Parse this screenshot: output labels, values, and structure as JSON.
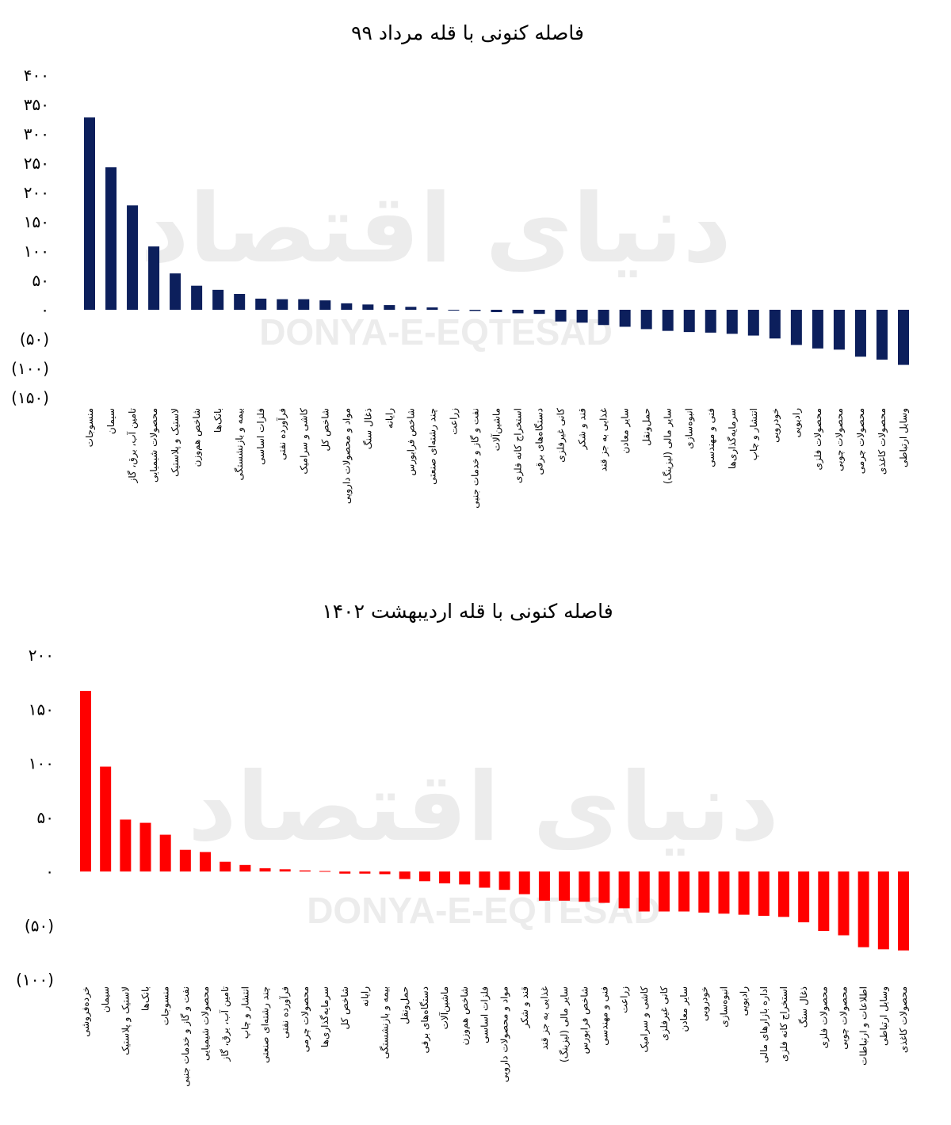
{
  "watermark": {
    "persian": "دنیای اقتصاد",
    "latin": "DONYA-E-EQTESAD"
  },
  "colors": {
    "chart1_bar": "#0c1f5c",
    "chart2_bar": "#ff0000",
    "watermark": "#ececec"
  },
  "chart_data": [
    {
      "type": "bar",
      "title": "فاصله کنونی با قله مرداد ۹۹",
      "xlabel": "",
      "ylabel": "",
      "ylim": [
        -150,
        400
      ],
      "yticks": [
        400,
        350,
        300,
        250,
        200,
        150,
        100,
        50,
        0,
        -50,
        -100,
        -150
      ],
      "ytick_labels": [
        "۴۰۰",
        "۳۵۰",
        "۳۰۰",
        "۲۵۰",
        "۲۰۰",
        "۱۵۰",
        "۱۰۰",
        "۵۰",
        "۰",
        "(۵۰)",
        "(۱۰۰)",
        "(۱۵۰)"
      ],
      "grid": false,
      "categories": [
        "منسوجات",
        "سیمان",
        "تامین آب، برق، گاز",
        "محصولات شیمیایی",
        "لاستیک و پلاستیک",
        "شاخص هم‌وزن",
        "بانک‌ها",
        "بیمه و بازنشستگی",
        "فلزات اساسی",
        "فرآورده نفتی",
        "کاشی و سرامیک",
        "شاخص کل",
        "مواد و محصولات دارویی",
        "ذغال سنگ",
        "رایانه",
        "شاخص فرابورس",
        "چند رشته‌ای صنعتی",
        "زراعت",
        "نفت و گاز و خدمات جنبی",
        "ماشین‌آلات",
        "استخراج کانه فلزی",
        "دستگاه‌های برقی",
        "کانی غیرفلزی",
        "قند و شکر",
        "غذایی به جز قند",
        "سایر معادن",
        "حمل‌ونقل",
        "سایر مالی (لیزینگ)",
        "انبوه‌سازی",
        "فنی و مهندسی",
        "سرمایه‌گذاری‌ها",
        "انتشار و چاپ",
        "خودرویی",
        "رادیویی",
        "محصولات فلزی",
        "محصولات چوبی",
        "محصولات چرمی",
        "محصولات کاغذی",
        "وسایل ارتباطی"
      ],
      "values": [
        328,
        243,
        178,
        108,
        62,
        41,
        34,
        27,
        19,
        18,
        18,
        16,
        11,
        9,
        8,
        5,
        4,
        -1,
        -2,
        -4,
        -6,
        -7,
        -20,
        -22,
        -26,
        -29,
        -33,
        -36,
        -38,
        -39,
        -41,
        -44,
        -49,
        -60,
        -66,
        -68,
        -80,
        -85,
        -94
      ]
    },
    {
      "type": "bar",
      "title": "فاصله کنونی با قله اردیبهشت ۱۴۰۲",
      "xlabel": "",
      "ylabel": "",
      "ylim": [
        -100,
        200
      ],
      "yticks": [
        200,
        150,
        100,
        50,
        0,
        -50,
        -100
      ],
      "ytick_labels": [
        "۲۰۰",
        "۱۵۰",
        "۱۰۰",
        "۵۰",
        "۰",
        "(۵۰)",
        "(۱۰۰)"
      ],
      "grid": false,
      "categories": [
        "خرده‌فروشی",
        "سیمان",
        "لاستیک و پلاستیک",
        "بانک‌ها",
        "منسوجات",
        "نفت و گاز و خدمات جنبی",
        "محصولات شیمیایی",
        "تامین آب، برق، گاز",
        "انتشار و چاپ",
        "چند رشته‌ای صنعتی",
        "فرآورده نفتی",
        "محصولات چرمی",
        "سرمایه‌گذاری‌ها",
        "شاخص کل",
        "رایانه",
        "بیمه و بازنشستگی",
        "حمل‌ونقل",
        "دستگاه‌های برقی",
        "ماشین‌آلات",
        "شاخص هم‌وزن",
        "فلزات اساسی",
        "مواد و محصولات دارویی",
        "قند و شکر",
        "غذایی به جز قند",
        "سایر مالی (لیزینگ)",
        "شاخص فرابورس",
        "فنی و مهندسی",
        "زراعت",
        "کاشی و سرامیک",
        "کانی غیرفلزی",
        "سایر معادن",
        "خودرویی",
        "انبوه‌سازی",
        "رادیویی",
        "اداره بازارهای مالی",
        "استخراج کانه فلزی",
        "ذغال سنگ",
        "محصولات فلزی",
        "محصولات چوبی",
        "اطلاعات و ارتباطات",
        "وسایل ارتباطی",
        "محصولات کاغذی"
      ],
      "values": [
        167,
        97,
        48,
        45,
        34,
        20,
        18,
        9,
        6,
        3,
        2,
        1,
        0.5,
        -2,
        -2,
        -2.5,
        -7,
        -9,
        -11,
        -12,
        -15,
        -17,
        -21,
        -27,
        -27,
        -28,
        -29,
        -34,
        -37,
        -37,
        -37,
        -38,
        -39,
        -40,
        -41,
        -42,
        -47,
        -55,
        -59,
        -70,
        -72,
        -73
      ]
    }
  ]
}
